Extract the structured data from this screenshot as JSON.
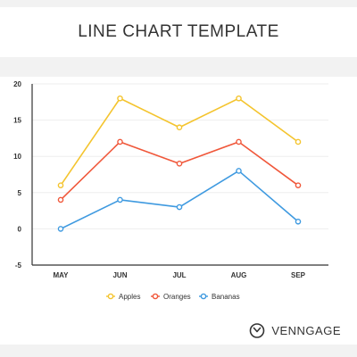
{
  "brand": {
    "name": "VENNGAGE"
  },
  "chart_data": {
    "type": "line",
    "title": "LINE CHART TEMPLATE",
    "xlabel": "",
    "ylabel": "",
    "categories": [
      "MAY",
      "JUN",
      "JUL",
      "AUG",
      "SEP"
    ],
    "ylim": [
      -5,
      20
    ],
    "yticks": [
      -5,
      0,
      5,
      10,
      15,
      20
    ],
    "grid": true,
    "legend_position": "bottom",
    "series": [
      {
        "name": "Apples",
        "color": "#f4c42e",
        "values": [
          6,
          18,
          14,
          18,
          12
        ]
      },
      {
        "name": "Oranges",
        "color": "#f0573a",
        "values": [
          4,
          12,
          9,
          12,
          6
        ]
      },
      {
        "name": "Bananas",
        "color": "#3f9ae0",
        "values": [
          0,
          4,
          3,
          8,
          1
        ]
      }
    ]
  }
}
